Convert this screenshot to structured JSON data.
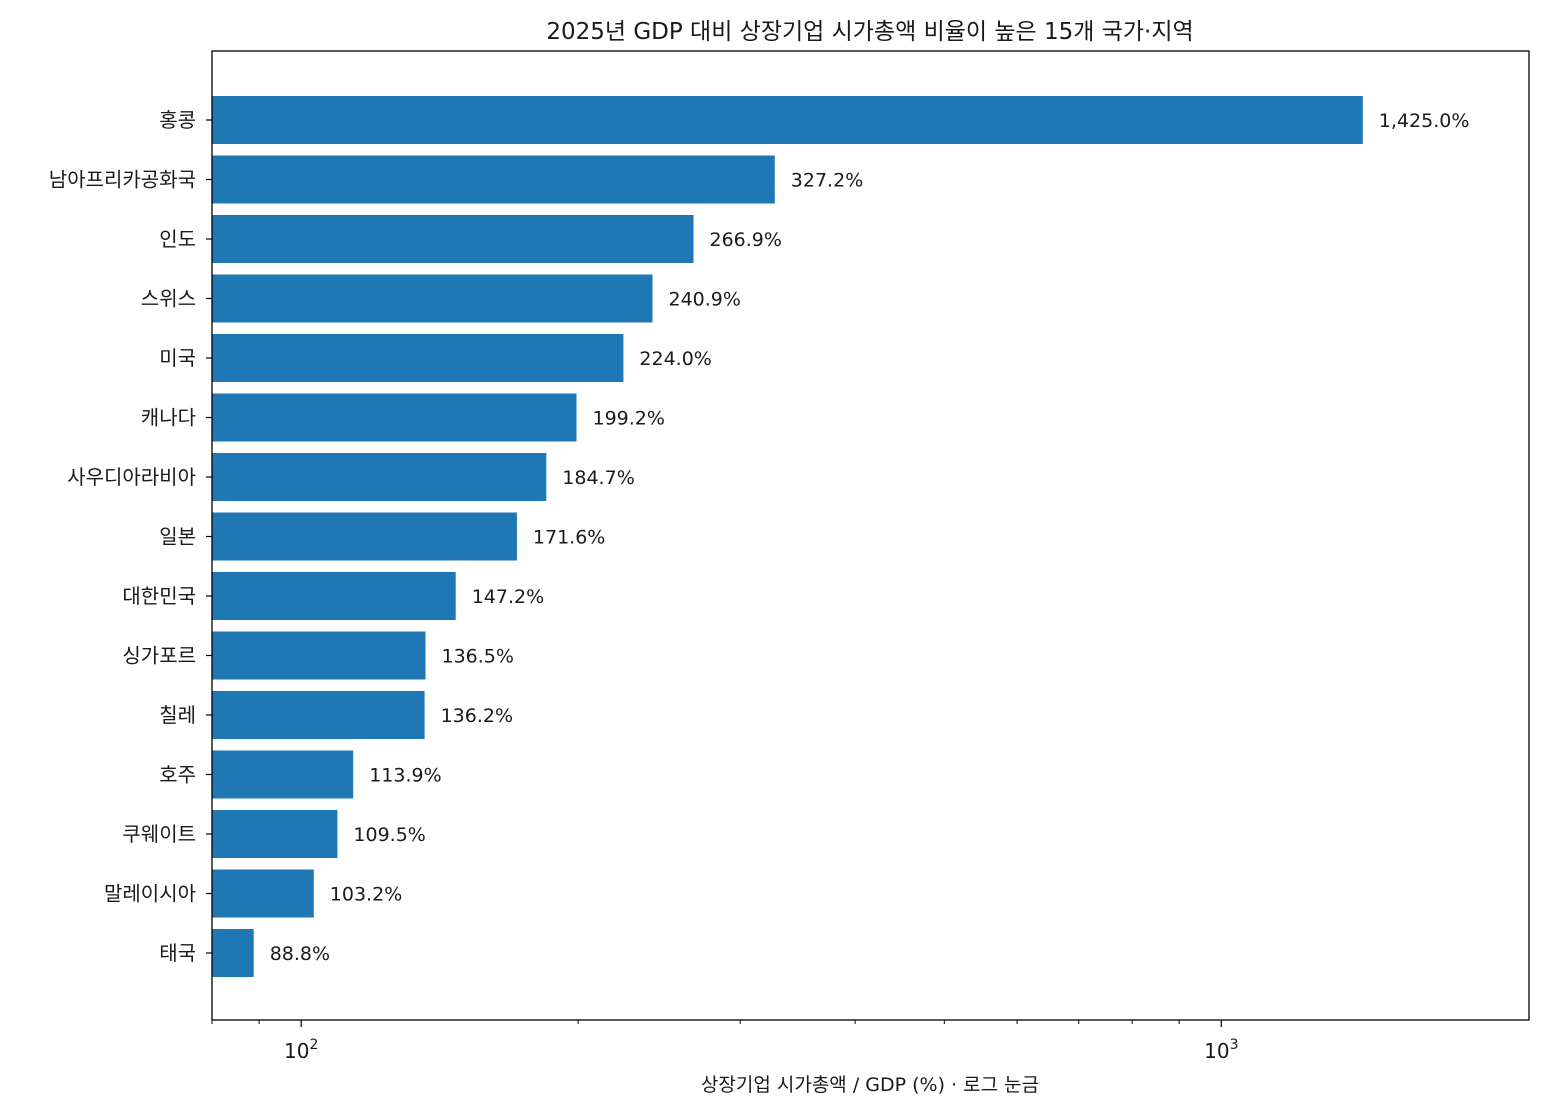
{
  "chart_data": {
    "type": "bar",
    "orientation": "horizontal",
    "title": "2025년 GDP 대비 상장기업 시가총액 비율이 높은 15개 국가·지역",
    "xlabel": "상장기업 시가총액 / GDP (%) · 로그 눈금",
    "ylabel": "",
    "x_scale": "log",
    "xlim": [
      80,
      2160
    ],
    "x_major_ticks": [
      {
        "value": 100,
        "base": "10",
        "exp": "2"
      },
      {
        "value": 1000,
        "base": "10",
        "exp": "3"
      }
    ],
    "grid": false,
    "bar_color": "#1f77b4",
    "categories": [
      "홍콩",
      "남아프리카공화국",
      "인도",
      "스위스",
      "미국",
      "캐나다",
      "사우디아라비아",
      "일본",
      "대한민국",
      "싱가포르",
      "칠레",
      "호주",
      "쿠웨이트",
      "말레이시아",
      "태국"
    ],
    "values": [
      1425.0,
      327.2,
      266.9,
      240.9,
      224.0,
      199.2,
      184.7,
      171.6,
      147.2,
      136.5,
      136.2,
      113.9,
      109.5,
      103.2,
      88.8
    ],
    "data_labels": [
      "1,425.0%",
      "327.2%",
      "266.9%",
      "240.9%",
      "224.0%",
      "199.2%",
      "184.7%",
      "171.6%",
      "147.2%",
      "136.5%",
      "136.2%",
      "113.9%",
      "109.5%",
      "103.2%",
      "88.8%"
    ]
  }
}
